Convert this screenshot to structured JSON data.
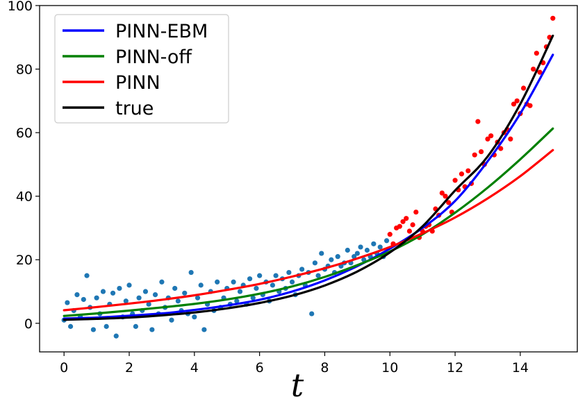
{
  "chart_data": {
    "type": "line",
    "title": "",
    "xlabel": "t",
    "ylabel": "",
    "xlim": [
      -0.75,
      15.75
    ],
    "ylim": [
      -9,
      100
    ],
    "xticks": [
      0,
      2,
      4,
      6,
      8,
      10,
      12,
      14
    ],
    "yticks": [
      0,
      20,
      40,
      60,
      80,
      100
    ],
    "grid": false,
    "legend_position": "top-left",
    "series": [
      {
        "name": "PINN-EBM",
        "kind": "line",
        "color": "#0000ff",
        "x": [
          0,
          1,
          2,
          3,
          4,
          5,
          6,
          7,
          8,
          9,
          10,
          11,
          12,
          13,
          14,
          15
        ],
        "y": [
          1.5,
          1.8,
          2.4,
          3.1,
          4.2,
          5.6,
          7.4,
          10,
          13.5,
          18,
          23.5,
          30,
          38.5,
          51,
          66,
          84.5
        ]
      },
      {
        "name": "PINN-off",
        "kind": "line",
        "color": "#008000",
        "x": [
          0,
          1,
          2,
          3,
          4,
          5,
          6,
          7,
          8,
          9,
          10,
          11,
          12,
          13,
          14,
          15
        ],
        "y": [
          2.3,
          3.1,
          4,
          5,
          6.1,
          7.5,
          9.3,
          11.6,
          14.6,
          18.3,
          22.6,
          28,
          34.8,
          42.7,
          51.6,
          61.3
        ]
      },
      {
        "name": "PINN",
        "kind": "line",
        "color": "#ff0000",
        "x": [
          0,
          1,
          2,
          3,
          4,
          5,
          6,
          7,
          8,
          9,
          10,
          11,
          12,
          13,
          14,
          15
        ],
        "y": [
          4.1,
          5.1,
          6.2,
          7.4,
          8.8,
          10.5,
          12.4,
          14.7,
          17.3,
          20.4,
          24,
          28.3,
          33.3,
          39.3,
          46.3,
          54.5
        ]
      },
      {
        "name": "true",
        "kind": "line",
        "color": "#000000",
        "x": [
          0,
          1,
          2,
          3,
          4,
          5,
          6,
          7,
          8,
          9,
          10,
          11,
          12,
          13,
          14,
          15
        ],
        "y": [
          1.1,
          1.4,
          1.8,
          2.5,
          3.4,
          4.7,
          6.4,
          8.7,
          11.9,
          16.3,
          22.3,
          30.5,
          41.8,
          52.5,
          69,
          90.5
        ]
      },
      {
        "name": "",
        "kind": "scatter",
        "color": "#1f77b4",
        "x": [
          0,
          0.1,
          0.2,
          0.3,
          0.4,
          0.5,
          0.6,
          0.7,
          0.8,
          0.9,
          1,
          1.1,
          1.2,
          1.3,
          1.4,
          1.5,
          1.6,
          1.7,
          1.8,
          1.9,
          2,
          2.1,
          2.2,
          2.3,
          2.4,
          2.5,
          2.6,
          2.7,
          2.8,
          2.9,
          3,
          3.1,
          3.2,
          3.3,
          3.4,
          3.5,
          3.6,
          3.7,
          3.8,
          3.9,
          4,
          4.1,
          4.2,
          4.3,
          4.4,
          4.5,
          4.6,
          4.7,
          4.8,
          4.9,
          5,
          5.1,
          5.2,
          5.3,
          5.4,
          5.5,
          5.6,
          5.7,
          5.8,
          5.9,
          6,
          6.1,
          6.2,
          6.3,
          6.4,
          6.5,
          6.6,
          6.7,
          6.8,
          6.9,
          7,
          7.1,
          7.2,
          7.3,
          7.4,
          7.5,
          7.6,
          7.7,
          7.8,
          7.9,
          8,
          8.1,
          8.2,
          8.3,
          8.4,
          8.5,
          8.6,
          8.7,
          8.8,
          8.9,
          9,
          9.1,
          9.2,
          9.3,
          9.4,
          9.5,
          9.6,
          9.7,
          9.8,
          9.9
        ],
        "y": [
          1,
          6.5,
          -1,
          4,
          9,
          2,
          7.5,
          15,
          5,
          -2,
          8,
          3,
          10,
          -1,
          6,
          9.5,
          -4,
          11,
          2,
          7,
          12,
          3,
          -1,
          8,
          4,
          10,
          6,
          -2,
          9,
          3,
          13,
          5,
          8,
          1,
          11,
          7,
          4,
          9.5,
          3,
          16,
          2,
          8,
          12,
          -2,
          6,
          10,
          4,
          13,
          5,
          8,
          11,
          6,
          13,
          7,
          10,
          12,
          6,
          14,
          8,
          11,
          15,
          9,
          13,
          7,
          12,
          15,
          10,
          14,
          11,
          16,
          13,
          9,
          15,
          17,
          12,
          16,
          3,
          19,
          15,
          22,
          17,
          18,
          20,
          16,
          21,
          18,
          19,
          23,
          19,
          21,
          22,
          24,
          20,
          23,
          21,
          25,
          22,
          24,
          21,
          26
        ]
      },
      {
        "name": "",
        "kind": "scatter",
        "color": "#ff0000",
        "x": [
          10,
          10.1,
          10.2,
          10.3,
          10.4,
          10.5,
          10.6,
          10.7,
          10.8,
          10.9,
          11,
          11.1,
          11.2,
          11.3,
          11.4,
          11.5,
          11.6,
          11.7,
          11.8,
          11.9,
          12,
          12.1,
          12.2,
          12.3,
          12.4,
          12.5,
          12.6,
          12.7,
          12.8,
          12.9,
          13,
          13.1,
          13.2,
          13.3,
          13.4,
          13.5,
          13.6,
          13.7,
          13.8,
          13.9,
          14,
          14.1,
          14.2,
          14.3,
          14.4,
          14.5,
          14.6,
          14.7,
          14.8,
          14.9,
          15
        ],
        "y": [
          28,
          25,
          30,
          30.5,
          32,
          33,
          29,
          31,
          35,
          27,
          29,
          30.5,
          31,
          29,
          36,
          34,
          41,
          40,
          38,
          35,
          45,
          42,
          47,
          43,
          48,
          44,
          53,
          63.5,
          54,
          50,
          58,
          59,
          53,
          57,
          55,
          60,
          61,
          58,
          69,
          70,
          66,
          74,
          69,
          68.5,
          80,
          85,
          79,
          82,
          87,
          90,
          96
        ]
      }
    ]
  }
}
